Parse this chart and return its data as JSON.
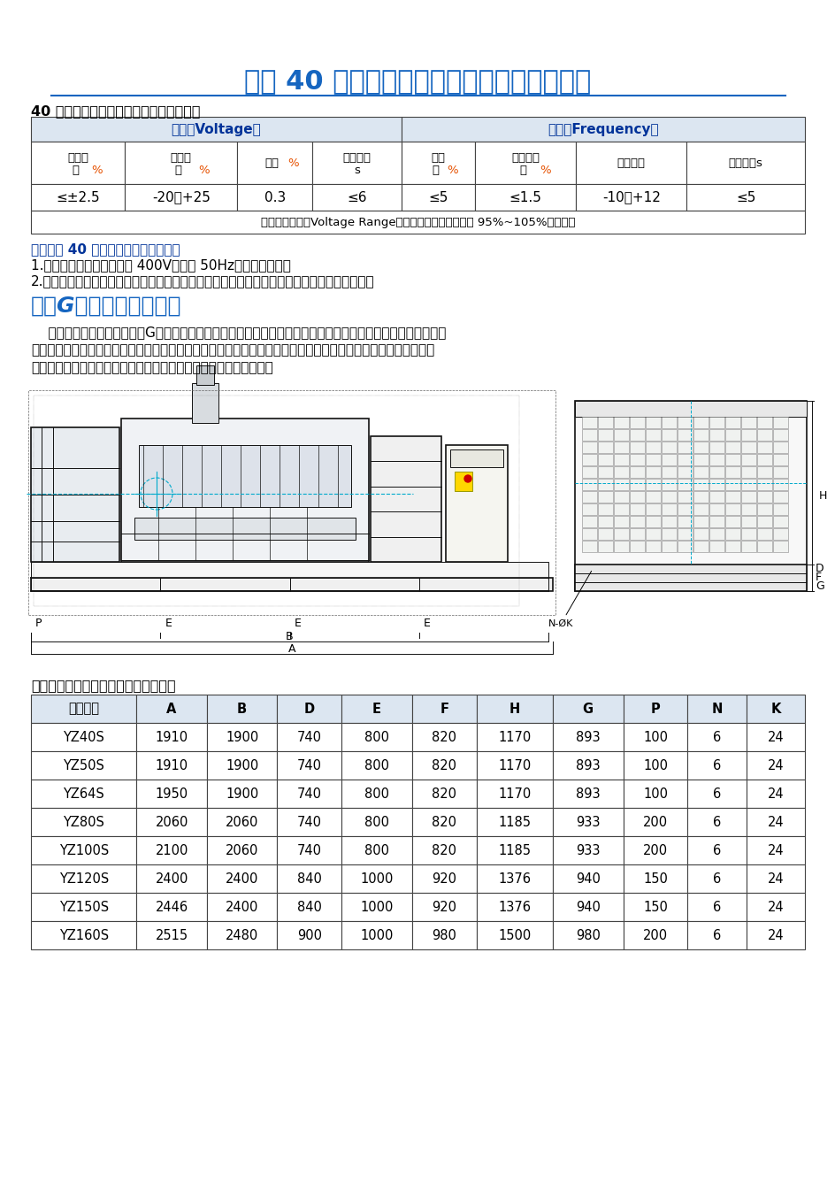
{
  "title": "上柴 40 千瓦柴油发电机组技术规格参数资料",
  "title_color": "#1565C0",
  "section1_title": "40 千瓦柴油发电机组主要电气性能指标：",
  "voltage_header": "电压（Voltage）",
  "freq_header": "频率（Frequency）",
  "table1_values": [
    "≤±2.5",
    "-20～+25",
    "0.3",
    "≤6",
    "≤5",
    "≤1.5",
    "-10～+12",
    "≤5"
  ],
  "table1_note": "电压调节范围（Voltage Range）：空载电压整定范围为 95%~105%额定电压",
  "note1": "翼中电站 40 千瓦柴油发电机组说明：",
  "note2": "1.翼中电站常规机组指电压 400V，频率 50Hz，保护型机组。",
  "note3": "2.上述机组可根据用户需要，做成保护型手动并车、自动并车、自启动、自启动自切换等功能。",
  "section2_title": "上柴G系列柴油发电机组",
  "section2_body1": "    翼中电站系列机组采用上柴G系列电站柴油机作为动力，选配伊华或麦格特系列无刷励磁发电机及控制屏组成。",
  "section2_body2": "机组具有调压精度高、动态性能好、电压波形畸变小、效率高、工作可靠、使用寿命长、经济性能好等特点。有可",
  "section2_body3": "并联、并网的产品，若有要求也可制成自启动或自启动自切换机组。",
  "section3_title": "柴油发电机组外形轮廓及安装尺寸表：",
  "dim_table_headers": [
    "机组型号",
    "A",
    "B",
    "D",
    "E",
    "F",
    "H",
    "G",
    "P",
    "N",
    "K"
  ],
  "dim_table_data": [
    [
      "YZ40S",
      "1910",
      "1900",
      "740",
      "800",
      "820",
      "1170",
      "893",
      "100",
      "6",
      "24"
    ],
    [
      "YZ50S",
      "1910",
      "1900",
      "740",
      "800",
      "820",
      "1170",
      "893",
      "100",
      "6",
      "24"
    ],
    [
      "YZ64S",
      "1950",
      "1900",
      "740",
      "800",
      "820",
      "1170",
      "893",
      "100",
      "6",
      "24"
    ],
    [
      "YZ80S",
      "2060",
      "2060",
      "740",
      "800",
      "820",
      "1185",
      "933",
      "200",
      "6",
      "24"
    ],
    [
      "YZ100S",
      "2100",
      "2060",
      "740",
      "800",
      "820",
      "1185",
      "933",
      "200",
      "6",
      "24"
    ],
    [
      "YZ120S",
      "2400",
      "2400",
      "840",
      "1000",
      "920",
      "1376",
      "940",
      "150",
      "6",
      "24"
    ],
    [
      "YZ150S",
      "2446",
      "2400",
      "840",
      "1000",
      "920",
      "1376",
      "940",
      "150",
      "6",
      "24"
    ],
    [
      "YZ160S",
      "2515",
      "2480",
      "900",
      "1000",
      "980",
      "1500",
      "980",
      "200",
      "6",
      "24"
    ]
  ],
  "bg_color": "#ffffff",
  "table_header_bg": "#dce6f1",
  "table_border_color": "#444444",
  "blue_color": "#1565C0",
  "orange_color": "#E65100",
  "dark_blue": "#003399",
  "text_color": "#000000",
  "section_title_color": "#1565C0",
  "cyan_color": "#00AACC"
}
